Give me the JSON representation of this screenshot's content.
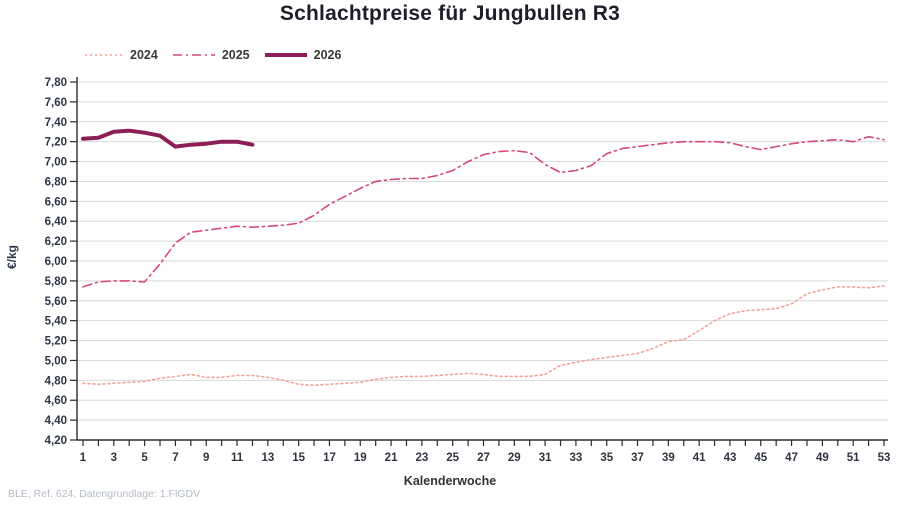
{
  "title": "Schlachtpreise für Jungbullen R3",
  "footer": "BLE, Ref. 624, Datengrundlage: 1.FlGDV",
  "chart_data": {
    "type": "line",
    "title": "Schlachtpreise für Jungbullen R3",
    "xlabel": "Kalenderwoche",
    "ylabel": "€/kg",
    "ylim": [
      4.2,
      7.8
    ],
    "ytick_step": 0.2,
    "xlim": [
      1,
      53
    ],
    "xtick_labeled": "odd weeks 1-53",
    "grid": "horizontal",
    "legend_position": "top-left",
    "decimal_separator": ",",
    "x": [
      1,
      2,
      3,
      4,
      5,
      6,
      7,
      8,
      9,
      10,
      11,
      12,
      13,
      14,
      15,
      16,
      17,
      18,
      19,
      20,
      21,
      22,
      23,
      24,
      25,
      26,
      27,
      28,
      29,
      30,
      31,
      32,
      33,
      34,
      35,
      36,
      37,
      38,
      39,
      40,
      41,
      42,
      43,
      44,
      45,
      46,
      47,
      48,
      49,
      50,
      51,
      52,
      53
    ],
    "series": [
      {
        "name": "2024",
        "style": "dotted",
        "color": "#F0A49B",
        "values": [
          4.77,
          4.76,
          4.77,
          4.78,
          4.79,
          4.82,
          4.84,
          4.86,
          4.83,
          4.83,
          4.85,
          4.85,
          4.83,
          4.8,
          4.76,
          4.75,
          4.76,
          4.77,
          4.78,
          4.81,
          4.83,
          4.84,
          4.84,
          4.85,
          4.86,
          4.87,
          4.86,
          4.84,
          4.84,
          4.84,
          4.86,
          4.95,
          4.98,
          5.01,
          5.03,
          5.05,
          5.07,
          5.12,
          5.19,
          5.21,
          5.3,
          5.4,
          5.47,
          5.5,
          5.51,
          5.52,
          5.57,
          5.67,
          5.71,
          5.74,
          5.74,
          5.73,
          5.75
        ]
      },
      {
        "name": "2025",
        "style": "dashdot",
        "color": "#D64A72",
        "values": [
          5.74,
          5.79,
          5.8,
          5.8,
          5.79,
          5.97,
          6.18,
          6.29,
          6.31,
          6.33,
          6.35,
          6.34,
          6.35,
          6.36,
          6.38,
          6.46,
          6.57,
          6.65,
          6.73,
          6.8,
          6.82,
          6.83,
          6.83,
          6.86,
          6.91,
          7.0,
          7.07,
          7.1,
          7.11,
          7.09,
          6.97,
          6.89,
          6.91,
          6.96,
          7.08,
          7.13,
          7.15,
          7.17,
          7.19,
          7.2,
          7.2,
          7.2,
          7.19,
          7.15,
          7.12,
          7.15,
          7.18,
          7.2,
          7.21,
          7.22,
          7.2,
          7.25,
          7.22
        ]
      },
      {
        "name": "2026",
        "style": "solid",
        "color": "#8C1D56",
        "values": [
          7.23,
          7.24,
          7.3,
          7.31,
          7.29,
          7.26,
          7.15,
          7.17,
          7.18,
          7.2,
          7.2,
          7.17
        ]
      }
    ]
  }
}
